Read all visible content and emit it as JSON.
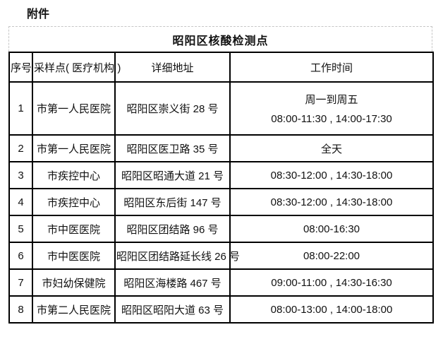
{
  "page": {
    "attachment_label": "附件"
  },
  "table": {
    "title": "昭阳区核酸检测点",
    "headers": [
      "序号",
      "采样点( 医疗机构 )",
      "详细地址",
      "工作时间"
    ],
    "rows": [
      {
        "no": "1",
        "name": "市第一人民医院",
        "addr": "昭阳区崇义街 28 号",
        "time1": "周一到周五",
        "time2": "08:00-11:30 , 14:00-17:30"
      },
      {
        "no": "2",
        "name": "市第一人民医院",
        "addr": "昭阳区医卫路 35 号",
        "time": "全天"
      },
      {
        "no": "3",
        "name": "市疾控中心",
        "addr": "昭阳区昭通大道 21 号",
        "time": "08:30-12:00 , 14:30-18:00"
      },
      {
        "no": "4",
        "name": "市疾控中心",
        "addr": "昭阳区东后街 147 号",
        "time": "08:30-12:00 , 14:30-18:00"
      },
      {
        "no": "5",
        "name": "市中医医院",
        "addr": "昭阳区团结路 96 号",
        "time": "08:00-16:30"
      },
      {
        "no": "6",
        "name": "市中医医院",
        "addr": "昭阳区团结路延长线 26 号",
        "time": "08:00-22:00"
      },
      {
        "no": "7",
        "name": "市妇幼保健院",
        "addr": "昭阳区海楼路 467 号",
        "time": "09:00-11:00 , 14:30-16:30"
      },
      {
        "no": "8",
        "name": "市第二人民医院",
        "addr": "昭阳区昭阳大道 63 号",
        "time": "08:00-13:00 , 14:00-18:00"
      }
    ],
    "colors": {
      "border": "#000000",
      "title_border": "#c6c6c6",
      "text": "#111111",
      "background": "#ffffff"
    }
  }
}
